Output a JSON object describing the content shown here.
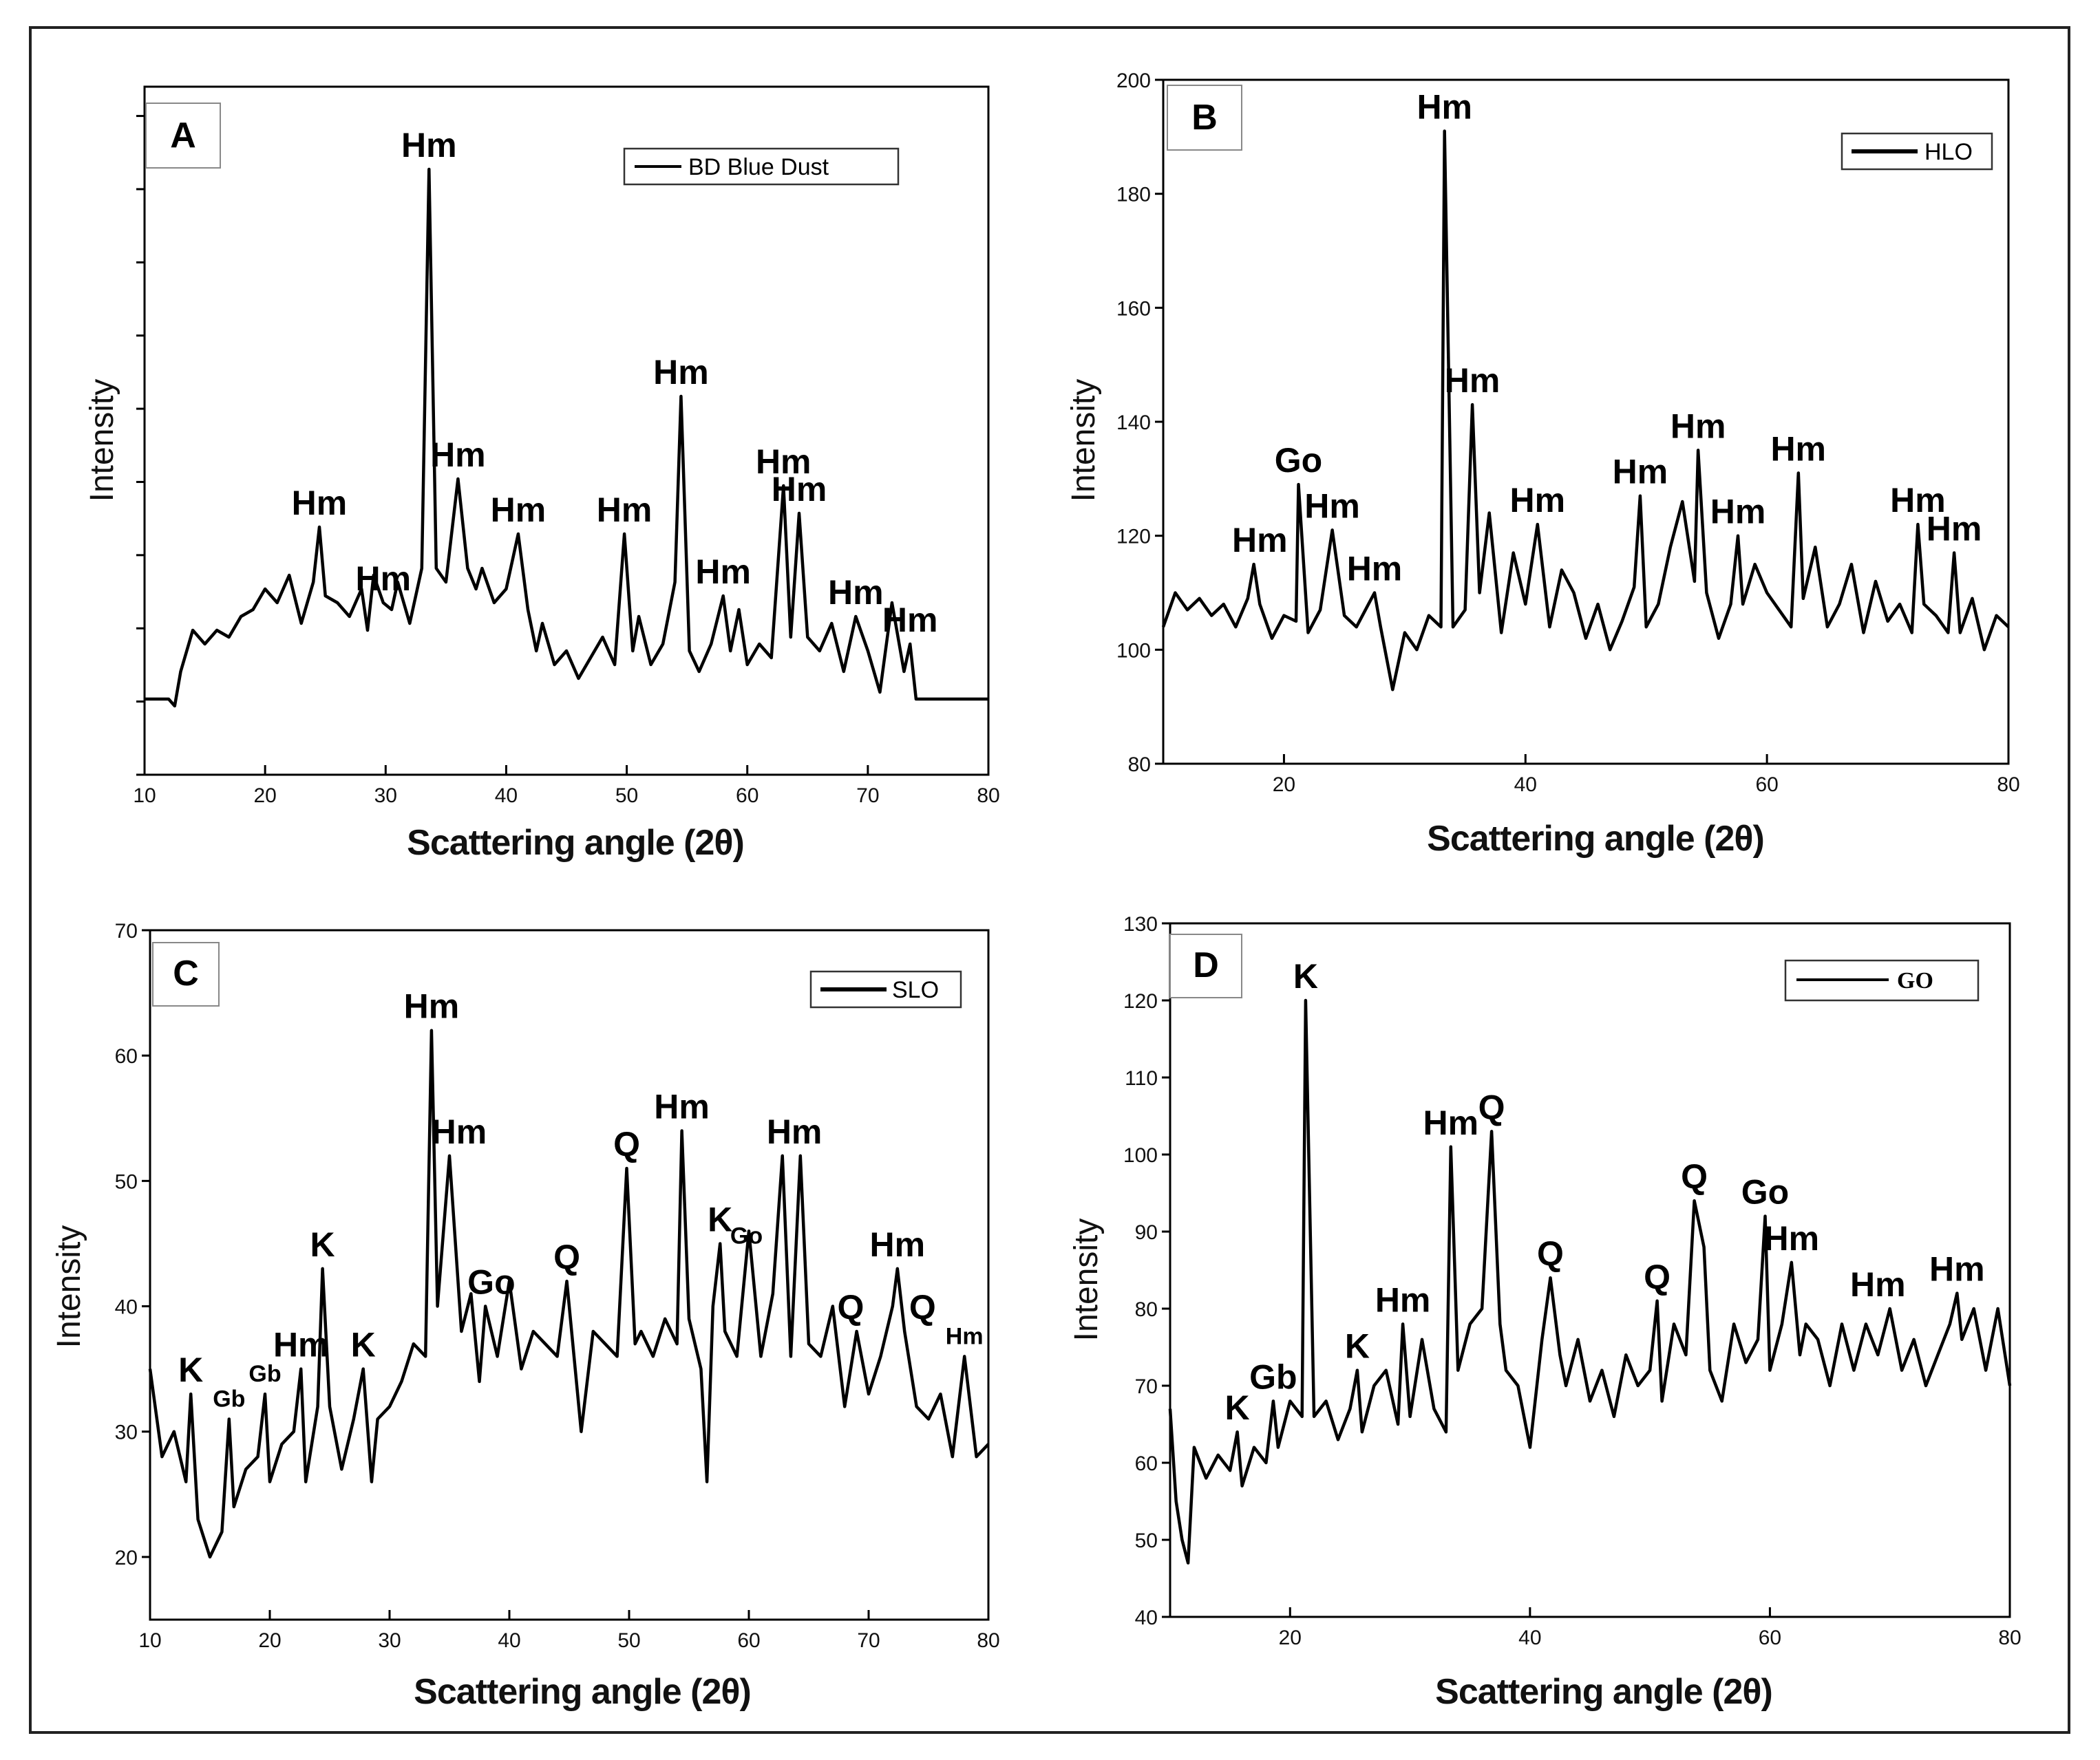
{
  "chart_data": [
    {
      "type": "line",
      "panel": "A",
      "title": "",
      "xlabel": "Scattering angle (2θ)",
      "ylabel": "Intensity",
      "xlim": [
        10,
        80
      ],
      "ylim": [
        0,
        100
      ],
      "xticks": [
        10,
        20,
        30,
        40,
        50,
        60,
        70,
        80
      ],
      "yticks": [],
      "show_y_tick_labels": false,
      "legend": {
        "label": "BD Blue Dust",
        "position": "top-right"
      },
      "series": [
        {
          "name": "BD Blue Dust",
          "x": [
            10,
            12,
            12.5,
            13,
            14,
            15,
            16,
            17,
            18,
            19,
            20,
            21,
            22,
            23,
            24,
            24.5,
            25,
            26,
            27,
            28,
            28.5,
            29,
            29.8,
            30.5,
            31,
            32,
            33,
            33.6,
            34.2,
            35,
            36,
            36.8,
            37.5,
            38,
            39,
            40,
            41,
            41.8,
            42.5,
            43,
            44,
            45,
            46,
            47,
            48,
            49,
            49.8,
            50.5,
            51,
            52,
            53,
            54,
            54.5,
            55.2,
            56,
            57,
            58,
            58.6,
            59.3,
            60,
            61,
            62,
            63,
            63.6,
            64.3,
            65,
            66,
            67,
            68,
            69,
            70,
            71,
            72,
            73,
            73.5,
            74,
            80
          ],
          "values": [
            11,
            11,
            10,
            15,
            21,
            19,
            21,
            20,
            23,
            24,
            27,
            25,
            29,
            22,
            28,
            36,
            26,
            25,
            23,
            27,
            21,
            29,
            25,
            24,
            28,
            22,
            30,
            88,
            30,
            28,
            43,
            30,
            27,
            30,
            25,
            27,
            35,
            24,
            18,
            22,
            16,
            18,
            14,
            17,
            20,
            16,
            35,
            18,
            23,
            16,
            19,
            28,
            55,
            18,
            15,
            19,
            26,
            18,
            24,
            16,
            19,
            17,
            42,
            20,
            38,
            20,
            18,
            22,
            15,
            23,
            18,
            12,
            25,
            15,
            19,
            11,
            11
          ]
        }
      ],
      "annotations": [
        {
          "text": "Hm",
          "x": 24.5,
          "y": 36
        },
        {
          "text": "Hm",
          "x": 29.8,
          "y": 25
        },
        {
          "text": "Hm",
          "x": 33.6,
          "y": 88
        },
        {
          "text": "Hm",
          "x": 36.0,
          "y": 43
        },
        {
          "text": "Hm",
          "x": 41.0,
          "y": 35
        },
        {
          "text": "Hm",
          "x": 49.8,
          "y": 35
        },
        {
          "text": "Hm",
          "x": 54.5,
          "y": 55
        },
        {
          "text": "Hm",
          "x": 58.0,
          "y": 26
        },
        {
          "text": "Hm",
          "x": 63.0,
          "y": 42
        },
        {
          "text": "Hm",
          "x": 64.3,
          "y": 38
        },
        {
          "text": "Hm",
          "x": 69.0,
          "y": 23
        },
        {
          "text": "Hm",
          "x": 73.5,
          "y": 19
        }
      ]
    },
    {
      "type": "line",
      "panel": "B",
      "title": "",
      "xlabel": "Scattering angle (2θ)",
      "ylabel": "Intensity",
      "xlim": [
        10,
        80
      ],
      "ylim": [
        80,
        200
      ],
      "xticks": [
        20,
        40,
        60,
        80
      ],
      "yticks": [
        80,
        100,
        120,
        140,
        160,
        180,
        200
      ],
      "show_y_tick_labels": true,
      "legend": {
        "label": "HLO",
        "position": "top-right"
      },
      "series": [
        {
          "name": "HLO",
          "x": [
            10,
            11,
            12,
            13,
            14,
            15,
            16,
            17,
            17.5,
            18,
            19,
            20,
            21,
            21.2,
            22,
            23,
            24,
            25,
            26,
            27,
            27.5,
            28,
            29,
            30,
            31,
            32,
            33,
            33.3,
            34,
            35,
            35.6,
            36.2,
            37,
            38,
            39,
            40,
            41,
            42,
            43,
            44,
            45,
            46,
            47,
            48,
            49,
            49.5,
            50,
            51,
            52,
            53,
            54,
            54.3,
            55,
            56,
            57,
            57.6,
            58,
            59,
            60,
            61,
            62,
            62.6,
            63,
            64,
            65,
            66,
            67,
            68,
            69,
            70,
            71,
            72,
            72.5,
            73,
            74,
            75,
            75.5,
            76,
            77,
            78,
            79,
            80
          ],
          "values": [
            104,
            110,
            107,
            109,
            106,
            108,
            104,
            109,
            115,
            108,
            102,
            106,
            105,
            129,
            103,
            107,
            121,
            106,
            104,
            108,
            110,
            104,
            93,
            103,
            100,
            106,
            104,
            191,
            104,
            107,
            143,
            110,
            124,
            103,
            117,
            108,
            122,
            104,
            114,
            110,
            102,
            108,
            100,
            105,
            111,
            127,
            104,
            108,
            118,
            126,
            112,
            135,
            110,
            102,
            108,
            120,
            108,
            115,
            110,
            107,
            104,
            131,
            109,
            118,
            104,
            108,
            115,
            103,
            112,
            105,
            108,
            103,
            122,
            108,
            106,
            103,
            117,
            103,
            109,
            100,
            106,
            104
          ]
        }
      ],
      "annotations": [
        {
          "text": "Hm",
          "x": 18.0,
          "y": 115
        },
        {
          "text": "Go",
          "x": 21.2,
          "y": 129
        },
        {
          "text": "Hm",
          "x": 24.0,
          "y": 121
        },
        {
          "text": "Hm",
          "x": 27.5,
          "y": 110
        },
        {
          "text": "Hm",
          "x": 33.3,
          "y": 191
        },
        {
          "text": "Hm",
          "x": 35.6,
          "y": 143
        },
        {
          "text": "Hm",
          "x": 41.0,
          "y": 122
        },
        {
          "text": "Hm",
          "x": 49.5,
          "y": 127
        },
        {
          "text": "Hm",
          "x": 54.3,
          "y": 135
        },
        {
          "text": "Hm",
          "x": 57.6,
          "y": 120
        },
        {
          "text": "Hm",
          "x": 62.6,
          "y": 131
        },
        {
          "text": "Hm",
          "x": 72.5,
          "y": 122
        },
        {
          "text": "Hm",
          "x": 75.5,
          "y": 117
        }
      ]
    },
    {
      "type": "line",
      "panel": "C",
      "title": "",
      "xlabel": "Scattering angle (2θ)",
      "ylabel": "Intensity",
      "xlim": [
        10,
        80
      ],
      "ylim": [
        15,
        70
      ],
      "xticks": [
        10,
        20,
        30,
        40,
        50,
        60,
        70,
        80
      ],
      "yticks": [
        20,
        30,
        40,
        50,
        60,
        70
      ],
      "show_y_tick_labels": true,
      "legend": {
        "label": "SLO",
        "position": "top-right"
      },
      "series": [
        {
          "name": "SLO",
          "x": [
            10,
            11,
            12,
            13,
            13.4,
            14,
            15,
            16,
            16.6,
            17,
            18,
            19,
            19.6,
            20,
            21,
            22,
            22.6,
            23,
            24,
            24.4,
            25,
            26,
            27,
            27.8,
            28.5,
            29,
            30,
            31,
            32,
            33,
            33.5,
            34,
            35,
            36,
            36.8,
            37.5,
            38,
            39,
            40,
            41,
            42,
            43,
            44,
            44.8,
            45.5,
            46,
            47,
            48,
            49,
            49.8,
            50.5,
            51,
            52,
            53,
            54,
            54.4,
            55,
            56,
            56.5,
            57,
            57.6,
            58,
            59,
            60,
            61,
            62,
            62.8,
            63.5,
            64.3,
            65,
            66,
            67,
            68,
            69,
            70,
            71,
            72,
            72.4,
            73,
            74,
            75,
            76,
            77,
            78,
            79,
            80
          ],
          "values": [
            35,
            28,
            30,
            26,
            33,
            23,
            20,
            22,
            31,
            24,
            27,
            28,
            33,
            26,
            29,
            30,
            35,
            26,
            32,
            43,
            32,
            27,
            31,
            35,
            26,
            31,
            32,
            34,
            37,
            36,
            62,
            40,
            52,
            38,
            41,
            34,
            40,
            36,
            42,
            35,
            38,
            37,
            36,
            42,
            35,
            30,
            38,
            37,
            36,
            51,
            37,
            38,
            36,
            39,
            37,
            54,
            39,
            35,
            26,
            40,
            45,
            38,
            36,
            46,
            36,
            41,
            52,
            36,
            52,
            37,
            36,
            40,
            32,
            38,
            33,
            36,
            40,
            43,
            38,
            32,
            31,
            33,
            28,
            36,
            28,
            29
          ]
        }
      ],
      "annotations": [
        {
          "text": "K",
          "x": 13.4,
          "y": 33
        },
        {
          "text": "Gb",
          "x": 16.6,
          "y": 31
        },
        {
          "text": "Gb",
          "x": 19.6,
          "y": 33
        },
        {
          "text": "Hm",
          "x": 22.6,
          "y": 35
        },
        {
          "text": "K",
          "x": 24.4,
          "y": 43
        },
        {
          "text": "K",
          "x": 27.8,
          "y": 35
        },
        {
          "text": "Hm",
          "x": 33.5,
          "y": 62
        },
        {
          "text": "Hm",
          "x": 35.8,
          "y": 52
        },
        {
          "text": "Go",
          "x": 38.5,
          "y": 40
        },
        {
          "text": "Q",
          "x": 44.8,
          "y": 42
        },
        {
          "text": "Q",
          "x": 49.8,
          "y": 51
        },
        {
          "text": "Hm",
          "x": 54.4,
          "y": 54
        },
        {
          "text": "K",
          "x": 57.6,
          "y": 45
        },
        {
          "text": "Go",
          "x": 59.8,
          "y": 44
        },
        {
          "text": "Hm",
          "x": 63.8,
          "y": 52
        },
        {
          "text": "Q",
          "x": 68.5,
          "y": 38
        },
        {
          "text": "Hm",
          "x": 72.4,
          "y": 43
        },
        {
          "text": "Q",
          "x": 74.5,
          "y": 38
        },
        {
          "text": "Hm",
          "x": 78.0,
          "y": 36
        }
      ]
    },
    {
      "type": "line",
      "panel": "D",
      "title": "",
      "xlabel": "Scattering angle (2θ)",
      "ylabel": "Intensity",
      "xlim": [
        10,
        80
      ],
      "ylim": [
        40,
        130
      ],
      "xticks": [
        20,
        40,
        60,
        80
      ],
      "yticks": [
        40,
        50,
        60,
        70,
        80,
        90,
        100,
        110,
        120,
        130
      ],
      "show_y_tick_labels": true,
      "legend": {
        "label": "GO",
        "position": "top-right"
      },
      "series": [
        {
          "name": "GO",
          "x": [
            10,
            10.5,
            11,
            11.5,
            12,
            13,
            14,
            15,
            15.6,
            16,
            17,
            18,
            18.6,
            19,
            20,
            21,
            21.3,
            22,
            23,
            24,
            25,
            25.6,
            26,
            27,
            28,
            29,
            29.4,
            30,
            31,
            32,
            33,
            33.4,
            34,
            35,
            36,
            36.8,
            37.5,
            38,
            39,
            40,
            41,
            41.7,
            42.5,
            43,
            44,
            45,
            46,
            47,
            48,
            49,
            50,
            50.6,
            51,
            52,
            53,
            53.7,
            54.5,
            55,
            56,
            57,
            58,
            59,
            59.6,
            60,
            61,
            61.8,
            62.5,
            63,
            64,
            65,
            66,
            67,
            68,
            69,
            70,
            71,
            72,
            73,
            74,
            75,
            75.6,
            76,
            77,
            78,
            79,
            80
          ],
          "values": [
            67,
            55,
            50,
            47,
            62,
            58,
            61,
            59,
            64,
            57,
            62,
            60,
            68,
            62,
            68,
            66,
            120,
            66,
            68,
            63,
            67,
            72,
            64,
            70,
            72,
            65,
            78,
            66,
            76,
            67,
            64,
            101,
            72,
            78,
            80,
            103,
            78,
            72,
            70,
            62,
            76,
            84,
            74,
            70,
            76,
            68,
            72,
            66,
            74,
            70,
            72,
            81,
            68,
            78,
            74,
            94,
            88,
            72,
            68,
            78,
            73,
            76,
            92,
            72,
            78,
            86,
            74,
            78,
            76,
            70,
            78,
            72,
            78,
            74,
            80,
            72,
            76,
            70,
            74,
            78,
            82,
            76,
            80,
            72,
            80,
            70
          ]
        }
      ],
      "annotations": [
        {
          "text": "K",
          "x": 15.6,
          "y": 64
        },
        {
          "text": "Gb",
          "x": 18.6,
          "y": 68
        },
        {
          "text": "K",
          "x": 25.6,
          "y": 72
        },
        {
          "text": "Hm",
          "x": 29.4,
          "y": 78
        },
        {
          "text": "K",
          "x": 21.3,
          "y": 120
        },
        {
          "text": "Hm",
          "x": 33.4,
          "y": 101
        },
        {
          "text": "Q",
          "x": 36.8,
          "y": 103
        },
        {
          "text": "Q",
          "x": 41.7,
          "y": 84
        },
        {
          "text": "Q",
          "x": 50.6,
          "y": 81
        },
        {
          "text": "Q",
          "x": 53.7,
          "y": 94
        },
        {
          "text": "Go",
          "x": 59.6,
          "y": 92
        },
        {
          "text": "Hm",
          "x": 61.8,
          "y": 86
        },
        {
          "text": "Hm",
          "x": 69.0,
          "y": 80
        },
        {
          "text": "Hm",
          "x": 75.6,
          "y": 82
        }
      ]
    }
  ]
}
